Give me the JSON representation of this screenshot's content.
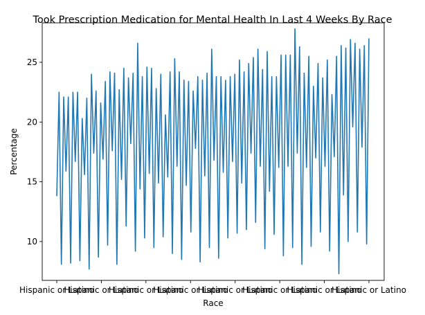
{
  "chart_data": {
    "type": "line",
    "title": "Took Prescription Medication for Mental Health In Last 4 Weeks By Race",
    "xlabel": "Race",
    "ylabel": "Percentage",
    "ylim": [
      6.75,
      28.3
    ],
    "yticks": [
      10,
      15,
      20,
      25
    ],
    "xtick_labels": [
      "Hispanic or Latino",
      "Hispanic or Latino",
      "Hispanic or Latino",
      "Hispanic or Latino",
      "Hispanic or Latino",
      "Hispanic or Latino",
      "Hispanic or Latino",
      "Hispanic or Latino"
    ],
    "line_color": "#1f77b4",
    "grid": false,
    "legend": "none",
    "series": [
      {
        "values": [
          13.8,
          22.5,
          8.1,
          22.1,
          15.9,
          22.1,
          8.2,
          22.5,
          16.7,
          22.5,
          8.4,
          20.3,
          15.6,
          22.0,
          7.7,
          24.0,
          17.4,
          22.6,
          8.7,
          21.6,
          16.9,
          23.4,
          9.7,
          24.2,
          17.6,
          24.1,
          8.1,
          22.7,
          15.2,
          24.5,
          11.3,
          23.7,
          18.2,
          24.1,
          9.2,
          26.6,
          14.4,
          23.8,
          10.3,
          24.6,
          15.7,
          24.5,
          9.5,
          22.8,
          14.9,
          24.0,
          10.4,
          20.6,
          15.4,
          24.2,
          9.0,
          25.3,
          16.3,
          24.2,
          8.5,
          23.5,
          14.7,
          23.4,
          10.8,
          22.6,
          17.8,
          23.8,
          8.3,
          23.5,
          15.5,
          24.1,
          9.5,
          26.1,
          16.8,
          23.8,
          8.6,
          23.8,
          15.8,
          23.5,
          10.3,
          23.8,
          16.7,
          24.0,
          10.7,
          25.2,
          14.9,
          24.2,
          11.0,
          24.9,
          17.4,
          25.4,
          11.6,
          26.1,
          16.3,
          24.4,
          9.4,
          25.9,
          14.2,
          23.8,
          10.6,
          23.8,
          16.2,
          25.6,
          8.8,
          25.6,
          16.3,
          25.6,
          9.5,
          27.8,
          17.4,
          26.3,
          8.1,
          24.1,
          16.2,
          25.5,
          9.6,
          23.0,
          17.0,
          24.9,
          10.8,
          23.7,
          16.3,
          25.2,
          9.2,
          22.3,
          17.1,
          25.5,
          7.3,
          26.4,
          13.9,
          26.2,
          10.0,
          26.9,
          19.6,
          26.6,
          10.8,
          26.1,
          17.9,
          26.4,
          9.8,
          27.0
        ]
      }
    ]
  }
}
